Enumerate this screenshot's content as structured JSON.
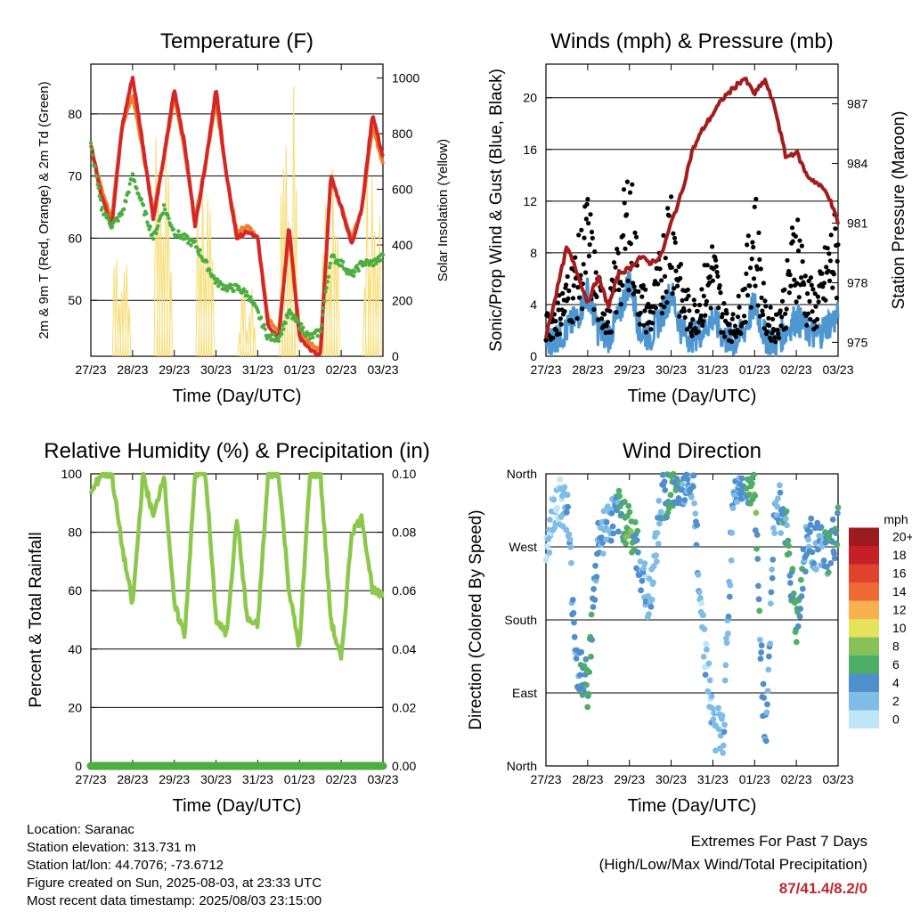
{
  "x_ticks": [
    "27/23",
    "28/23",
    "29/23",
    "30/23",
    "31/23",
    "01/23",
    "02/23",
    "03/23"
  ],
  "panels": {
    "temperature": {
      "title": "Temperature (F)",
      "xlabel": "Time (Day/UTC)",
      "ylabel_left": "2m & 9m T (Red, Orange) & 2m Td (Green)",
      "ylabel_right": "Solar Insolation (Yellow)",
      "left_ticks": [
        "50",
        "60",
        "70",
        "80"
      ],
      "right_ticks": [
        "0",
        "200",
        "400",
        "600",
        "800",
        "1000"
      ]
    },
    "winds": {
      "title": "Winds (mph) & Pressure (mb)",
      "xlabel": "Time (Day/UTC)",
      "ylabel_left": "Sonic/Prop Wind & Gust (Blue, Black)",
      "ylabel_right": "Station Pressure (Maroon)",
      "left_ticks": [
        "0",
        "4",
        "8",
        "12",
        "16",
        "20"
      ],
      "right_ticks": [
        "975",
        "978",
        "981",
        "984",
        "987"
      ]
    },
    "humidity": {
      "title": "Relative Humidity (%) & Precipitation (in)",
      "xlabel": "Time (Day/UTC)",
      "ylabel_left": "Percent & Total Rainfall",
      "left_ticks": [
        "0",
        "20",
        "40",
        "60",
        "80",
        "100"
      ],
      "right_ticks": [
        "0.00",
        "0.02",
        "0.04",
        "0.06",
        "0.08",
        "0.10"
      ]
    },
    "direction": {
      "title": "Wind Direction",
      "xlabel": "Time (Day/UTC)",
      "ylabel_left": "Direction (Colored By Speed)",
      "left_ticks": [
        "North",
        "East",
        "South",
        "West",
        "North"
      ],
      "legend_title": "mph",
      "legend_labels": [
        "0",
        "2",
        "4",
        "6",
        "8",
        "10",
        "12",
        "14",
        "16",
        "18",
        "20+"
      ],
      "legend_colors": [
        "#bfe6f7",
        "#7fbde6",
        "#4f8fcc",
        "#4fae66",
        "#86c15a",
        "#e6e25a",
        "#f7b24f",
        "#ef6a32",
        "#e0422b",
        "#c42026",
        "#9b1b1e"
      ]
    }
  },
  "info": {
    "location": "Location: Saranac",
    "elevation": "Station elevation: 313.731 m",
    "latlon": "Station lat/lon: 44.7076; -73.6712",
    "created": "Figure created on Sun, 2025-08-03, at 23:33 UTC",
    "recent": "Most recent data timestamp: 2025/08/03 23:15:00"
  },
  "extremes": {
    "title": "Extremes For Past 7 Days",
    "subtitle": "(High/Low/Max Wind/Total Precipitation)",
    "value": "87/41.4/8.2/0"
  },
  "chart_data": [
    {
      "type": "line",
      "title": "Temperature (F)",
      "xlabel": "Time (Day/UTC)",
      "ylabel": "2m & 9m T (Red, Orange) & 2m Td (Green)",
      "y2label": "Solar Insolation (Yellow)",
      "ylim": [
        41,
        88
      ],
      "y2lim": [
        0,
        1050
      ],
      "x": [
        0,
        0.25,
        0.5,
        0.75,
        1,
        1.25,
        1.5,
        1.75,
        2,
        2.25,
        2.5,
        2.75,
        3,
        3.25,
        3.5,
        3.75,
        4,
        4.25,
        4.5,
        4.75,
        5,
        5.25,
        5.5,
        5.75,
        6,
        6.25,
        6.5,
        6.75,
        7
      ],
      "series": [
        {
          "name": "2m T",
          "color": "#d62728",
          "values": [
            75,
            67,
            62,
            78,
            86,
            75,
            63,
            73,
            84,
            75,
            62,
            72,
            84,
            70,
            60,
            61,
            60,
            46,
            44,
            62,
            44,
            42,
            41,
            70,
            65,
            59,
            65,
            80,
            73
          ]
        },
        {
          "name": "9m T",
          "color": "#f07f2a",
          "values": [
            75,
            68,
            63,
            78,
            83,
            74,
            64,
            73,
            83,
            74,
            63,
            72,
            82,
            70,
            61,
            62,
            60,
            47,
            45,
            61,
            45,
            43,
            42,
            70,
            65,
            60,
            65,
            78,
            72
          ]
        },
        {
          "name": "2m Td",
          "color": "#4cae3f",
          "values": [
            75,
            65,
            62,
            64,
            70,
            65,
            60,
            65,
            61,
            60,
            59,
            56,
            53,
            52,
            52,
            51,
            48,
            44,
            44,
            48,
            46,
            44,
            45,
            57,
            56,
            54,
            56,
            56,
            57
          ]
        },
        {
          "name": "Solar Insolation",
          "color": "#f7dc6f",
          "values": [
            0,
            0,
            0,
            500,
            0,
            0,
            0,
            860,
            0,
            0,
            0,
            820,
            0,
            0,
            0,
            250,
            0,
            0,
            0,
            980,
            0,
            0,
            0,
            800,
            0,
            0,
            0,
            700,
            0
          ]
        }
      ]
    },
    {
      "type": "line",
      "title": "Winds (mph) & Pressure (mb)",
      "xlabel": "Time (Day/UTC)",
      "ylabel": "Sonic/Prop Wind & Gust (Blue, Black)",
      "y2label": "Station Pressure (Maroon)",
      "ylim": [
        0,
        22.6
      ],
      "y2lim": [
        974.3,
        989
      ],
      "x": [
        0,
        0.25,
        0.5,
        0.75,
        1,
        1.25,
        1.5,
        1.75,
        2,
        2.25,
        2.5,
        2.75,
        3,
        3.25,
        3.5,
        3.75,
        4,
        4.25,
        4.5,
        4.75,
        5,
        5.25,
        5.5,
        5.75,
        6,
        6.25,
        6.5,
        6.75,
        7
      ],
      "series": [
        {
          "name": "Sonic/Prop Wind",
          "color": "#4f97d1",
          "values": [
            1,
            1.5,
            2,
            3,
            5,
            2,
            1.5,
            3,
            6,
            2,
            1.5,
            3,
            5,
            2,
            1.5,
            2,
            3,
            1.5,
            1,
            2,
            4,
            1.5,
            1,
            2,
            3,
            2,
            1.5,
            2.5,
            3
          ]
        },
        {
          "name": "Gust",
          "color": "#000000",
          "values": [
            3,
            4,
            6,
            8,
            12,
            6,
            4,
            9,
            15,
            6,
            4,
            8,
            14,
            6,
            4,
            6,
            9,
            4,
            3,
            6,
            13,
            4,
            3,
            6,
            12,
            6,
            5,
            9,
            11
          ]
        },
        {
          "name": "Station Pressure",
          "color": "#a31d1d",
          "values": [
            975.3,
            977.5,
            979.8,
            978.5,
            977.0,
            978.3,
            976.8,
            978.5,
            978.7,
            979.3,
            979.0,
            979.3,
            981.0,
            982.5,
            984.6,
            985.7,
            986.5,
            987.3,
            987.8,
            988.3,
            987.5,
            988.2,
            986.7,
            984.3,
            984.6,
            983.4,
            983.0,
            982.5,
            981.0
          ]
        }
      ]
    },
    {
      "type": "line",
      "title": "Relative Humidity (%) & Precipitation (in)",
      "xlabel": "Time (Day/UTC)",
      "ylabel": "Percent & Total Rainfall",
      "ylim": [
        0,
        100
      ],
      "y2lim": [
        0,
        0.1
      ],
      "x": [
        0,
        0.25,
        0.5,
        0.75,
        1,
        1.25,
        1.5,
        1.75,
        2,
        2.25,
        2.5,
        2.75,
        3,
        3.25,
        3.5,
        3.75,
        4,
        4.25,
        4.5,
        4.75,
        5,
        5.25,
        5.5,
        5.75,
        6,
        6.25,
        6.5,
        6.75,
        7
      ],
      "series": [
        {
          "name": "Relative Humidity",
          "color": "#8cc84b",
          "values": [
            93,
            100,
            100,
            75,
            55,
            100,
            85,
            100,
            55,
            45,
            100,
            100,
            50,
            45,
            85,
            50,
            48,
            100,
            100,
            60,
            40,
            100,
            100,
            50,
            36,
            80,
            85,
            60,
            58
          ]
        },
        {
          "name": "Total Precipitation",
          "color": "#4cae3f",
          "values": [
            0,
            0,
            0,
            0,
            0,
            0,
            0,
            0,
            0,
            0,
            0,
            0,
            0,
            0,
            0,
            0,
            0,
            0,
            0,
            0,
            0,
            0,
            0,
            0,
            0,
            0,
            0,
            0,
            0
          ]
        }
      ]
    },
    {
      "type": "scatter",
      "title": "Wind Direction",
      "xlabel": "Time (Day/UTC)",
      "ylabel": "Direction (Colored By Speed)",
      "yticks": [
        "North",
        "East",
        "South",
        "West",
        "North"
      ],
      "legend_title": "mph",
      "x": [
        0,
        0.25,
        0.5,
        0.75,
        1,
        1.25,
        1.5,
        1.75,
        2,
        2.25,
        2.5,
        2.75,
        3,
        3.25,
        3.5,
        3.75,
        4,
        4.25,
        4.5,
        4.75,
        5,
        5.25,
        5.5,
        5.75,
        6,
        6.25,
        6.5,
        6.75,
        7
      ],
      "series": [
        {
          "name": "direction_deg",
          "values": [
            270,
            330,
            320,
            120,
            100,
            280,
            300,
            310,
            300,
            250,
            200,
            330,
            340,
            350,
            360,
            180,
            50,
            40,
            350,
            360,
            340,
            20,
            330,
            300,
            170,
            280,
            270,
            260,
            290
          ]
        },
        {
          "name": "speed_mph",
          "values": [
            1,
            1,
            2,
            4,
            6,
            3,
            2,
            4,
            7,
            3,
            2,
            3,
            6,
            4,
            3,
            2,
            2,
            2,
            3,
            4,
            6,
            3,
            2,
            4,
            6,
            4,
            3,
            4,
            5
          ]
        }
      ]
    }
  ]
}
